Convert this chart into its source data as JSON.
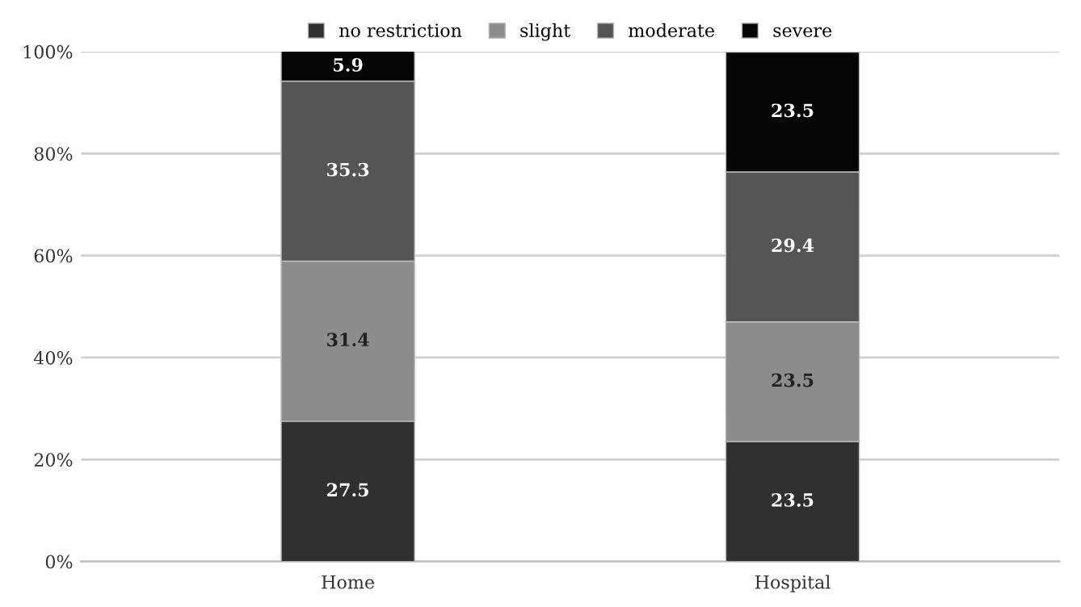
{
  "chart_data": {
    "type": "bar",
    "stacked": true,
    "categories": [
      "Home",
      "Hospital"
    ],
    "series": [
      {
        "name": "no restriction",
        "color": "#303030",
        "values": [
          27.5,
          23.5
        ]
      },
      {
        "name": "slight",
        "color": "#8c8c8c",
        "values": [
          31.4,
          23.5
        ]
      },
      {
        "name": "moderate",
        "color": "#555555",
        "values": [
          35.3,
          29.4
        ]
      },
      {
        "name": "severe",
        "color": "#050505",
        "values": [
          5.9,
          23.5
        ]
      }
    ],
    "ylim": [
      0,
      100
    ],
    "yticks": [
      {
        "value": 0,
        "label": "0%"
      },
      {
        "value": 20,
        "label": "20%"
      },
      {
        "value": 40,
        "label": "40%"
      },
      {
        "value": 60,
        "label": "60%"
      },
      {
        "value": 80,
        "label": "80%"
      },
      {
        "value": 100,
        "label": "100%"
      }
    ],
    "grid": "y",
    "legend": "top",
    "data_labels": true
  }
}
